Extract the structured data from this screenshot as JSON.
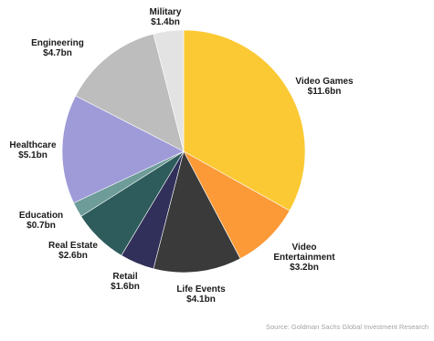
{
  "chart_data": {
    "type": "pie",
    "title": "",
    "units": "bn",
    "slices": [
      {
        "label": "Video Games",
        "value_text": "$11.6bn",
        "value": 11.6,
        "color": "#fbc933"
      },
      {
        "label": "Video Entertainment",
        "value_text": "$3.2bn",
        "value": 3.2,
        "color": "#fb9a37"
      },
      {
        "label": "Life Events",
        "value_text": "$4.1bn",
        "value": 4.1,
        "color": "#3a3a3a"
      },
      {
        "label": "Retail",
        "value_text": "$1.6bn",
        "value": 1.6,
        "color": "#30305a"
      },
      {
        "label": "Real Estate",
        "value_text": "$2.6bn",
        "value": 2.6,
        "color": "#2e5c5c"
      },
      {
        "label": "Education",
        "value_text": "$0.7bn",
        "value": 0.7,
        "color": "#6d9c99"
      },
      {
        "label": "Healthcare",
        "value_text": "$5.1bn",
        "value": 5.1,
        "color": "#9e9bd8"
      },
      {
        "label": "Engineering",
        "value_text": "$4.7bn",
        "value": 4.7,
        "color": "#bdbdbd"
      },
      {
        "label": "Military",
        "value_text": "$1.4bn",
        "value": 1.4,
        "color": "#e3e3e3"
      }
    ]
  },
  "source": "Source: Goldman Sachs Global Investment Research"
}
